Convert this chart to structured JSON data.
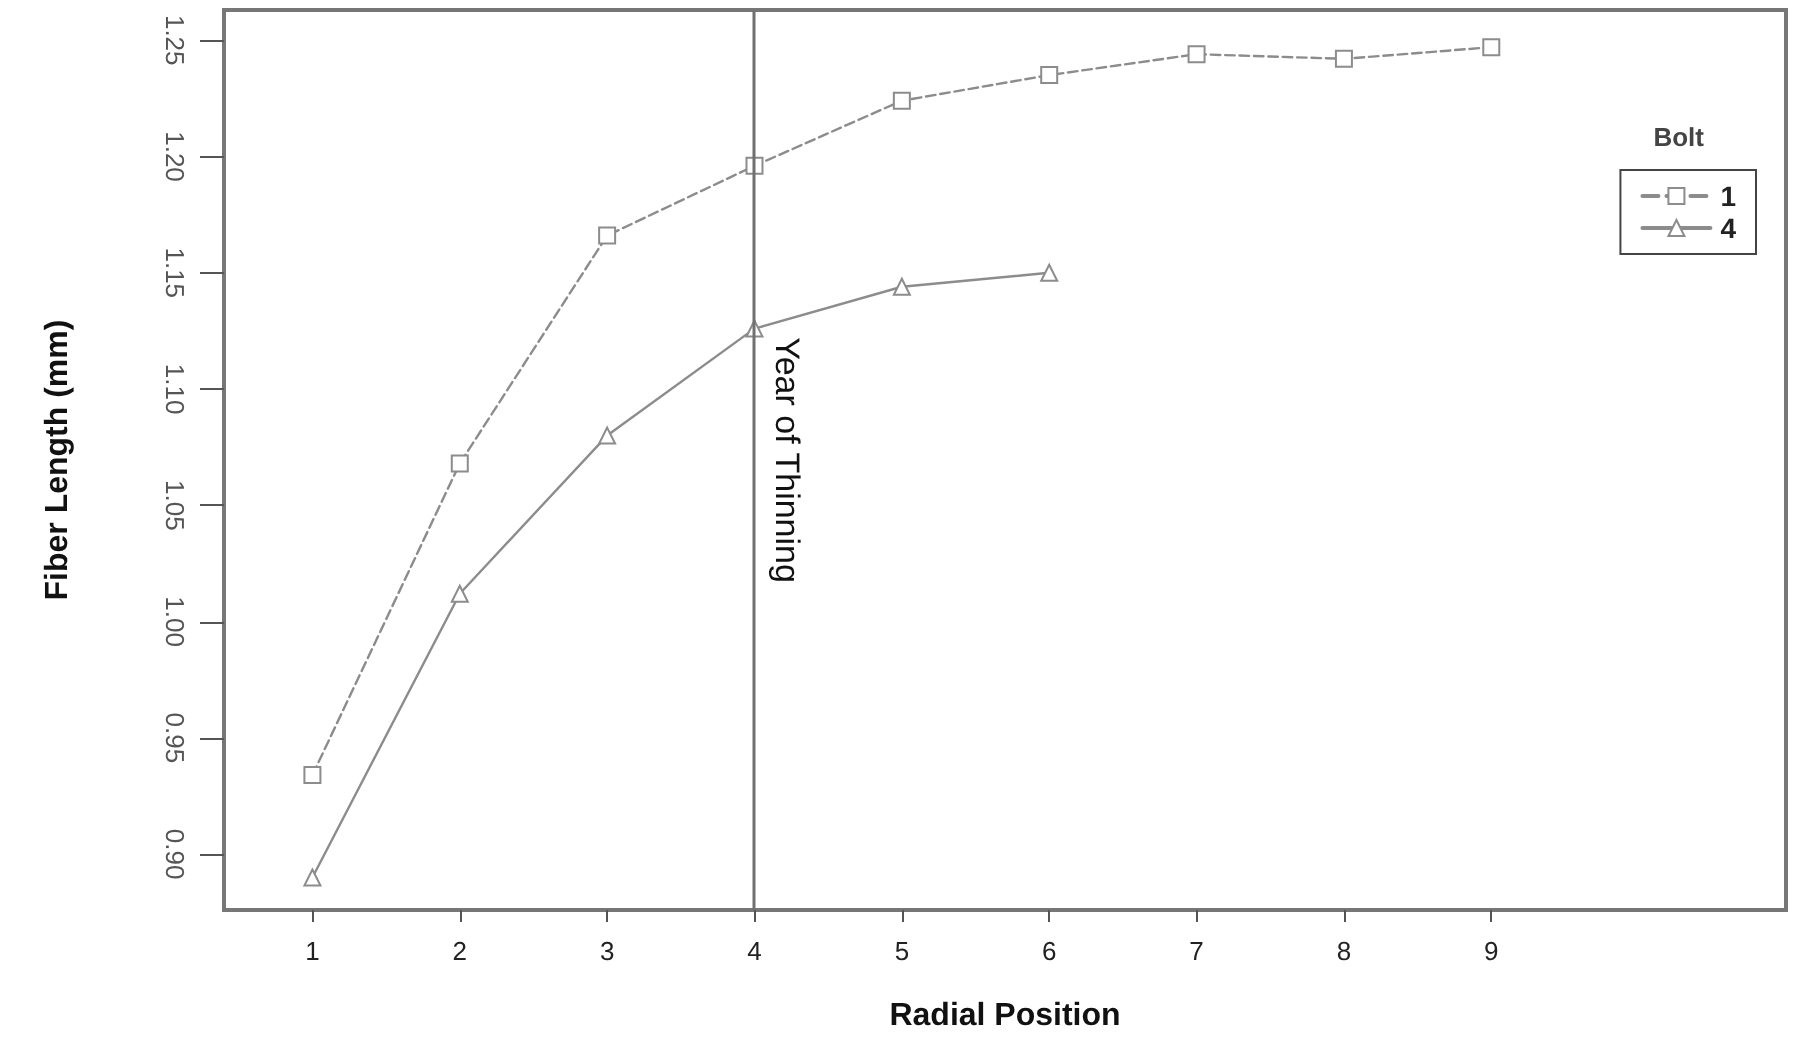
{
  "chart_data": {
    "type": "line",
    "xlabel": "Radial Position",
    "ylabel": "Fiber Length (mm)",
    "legend_title": "Bolt",
    "x": [
      1,
      2,
      3,
      4,
      5,
      6,
      7,
      8,
      9
    ],
    "series": [
      {
        "name": "1",
        "color": "#8c8c8c",
        "marker": "square",
        "line_style": "dashed",
        "values": [
          0.934,
          1.068,
          1.166,
          1.196,
          1.224,
          1.235,
          1.244,
          1.242,
          1.247
        ]
      },
      {
        "name": "4",
        "color": "#8c8c8c",
        "marker": "triangle",
        "line_style": "solid",
        "values": [
          0.89,
          1.012,
          1.08,
          1.126,
          1.144,
          1.15,
          null,
          null,
          null
        ]
      }
    ],
    "xlim": [
      0.4,
      11
    ],
    "xticks": [
      1,
      2,
      3,
      4,
      5,
      6,
      7,
      8,
      9
    ],
    "ylim": [
      0.876,
      1.263
    ],
    "yticks": [
      {
        "value": 0.9,
        "label": "0.90"
      },
      {
        "value": 0.95,
        "label": "0.95"
      },
      {
        "value": 1.0,
        "label": "1.00"
      },
      {
        "value": 1.05,
        "label": "1.05"
      },
      {
        "value": 1.1,
        "label": "1.10"
      },
      {
        "value": 1.15,
        "label": "1.15"
      },
      {
        "value": 1.2,
        "label": "1.20"
      },
      {
        "value": 1.25,
        "label": "1.25"
      }
    ],
    "ref_lines": [
      {
        "axis": "x",
        "value": 4,
        "label": "Year of Thinning",
        "color": "#707070"
      }
    ],
    "grid": false,
    "legend": "top right"
  }
}
